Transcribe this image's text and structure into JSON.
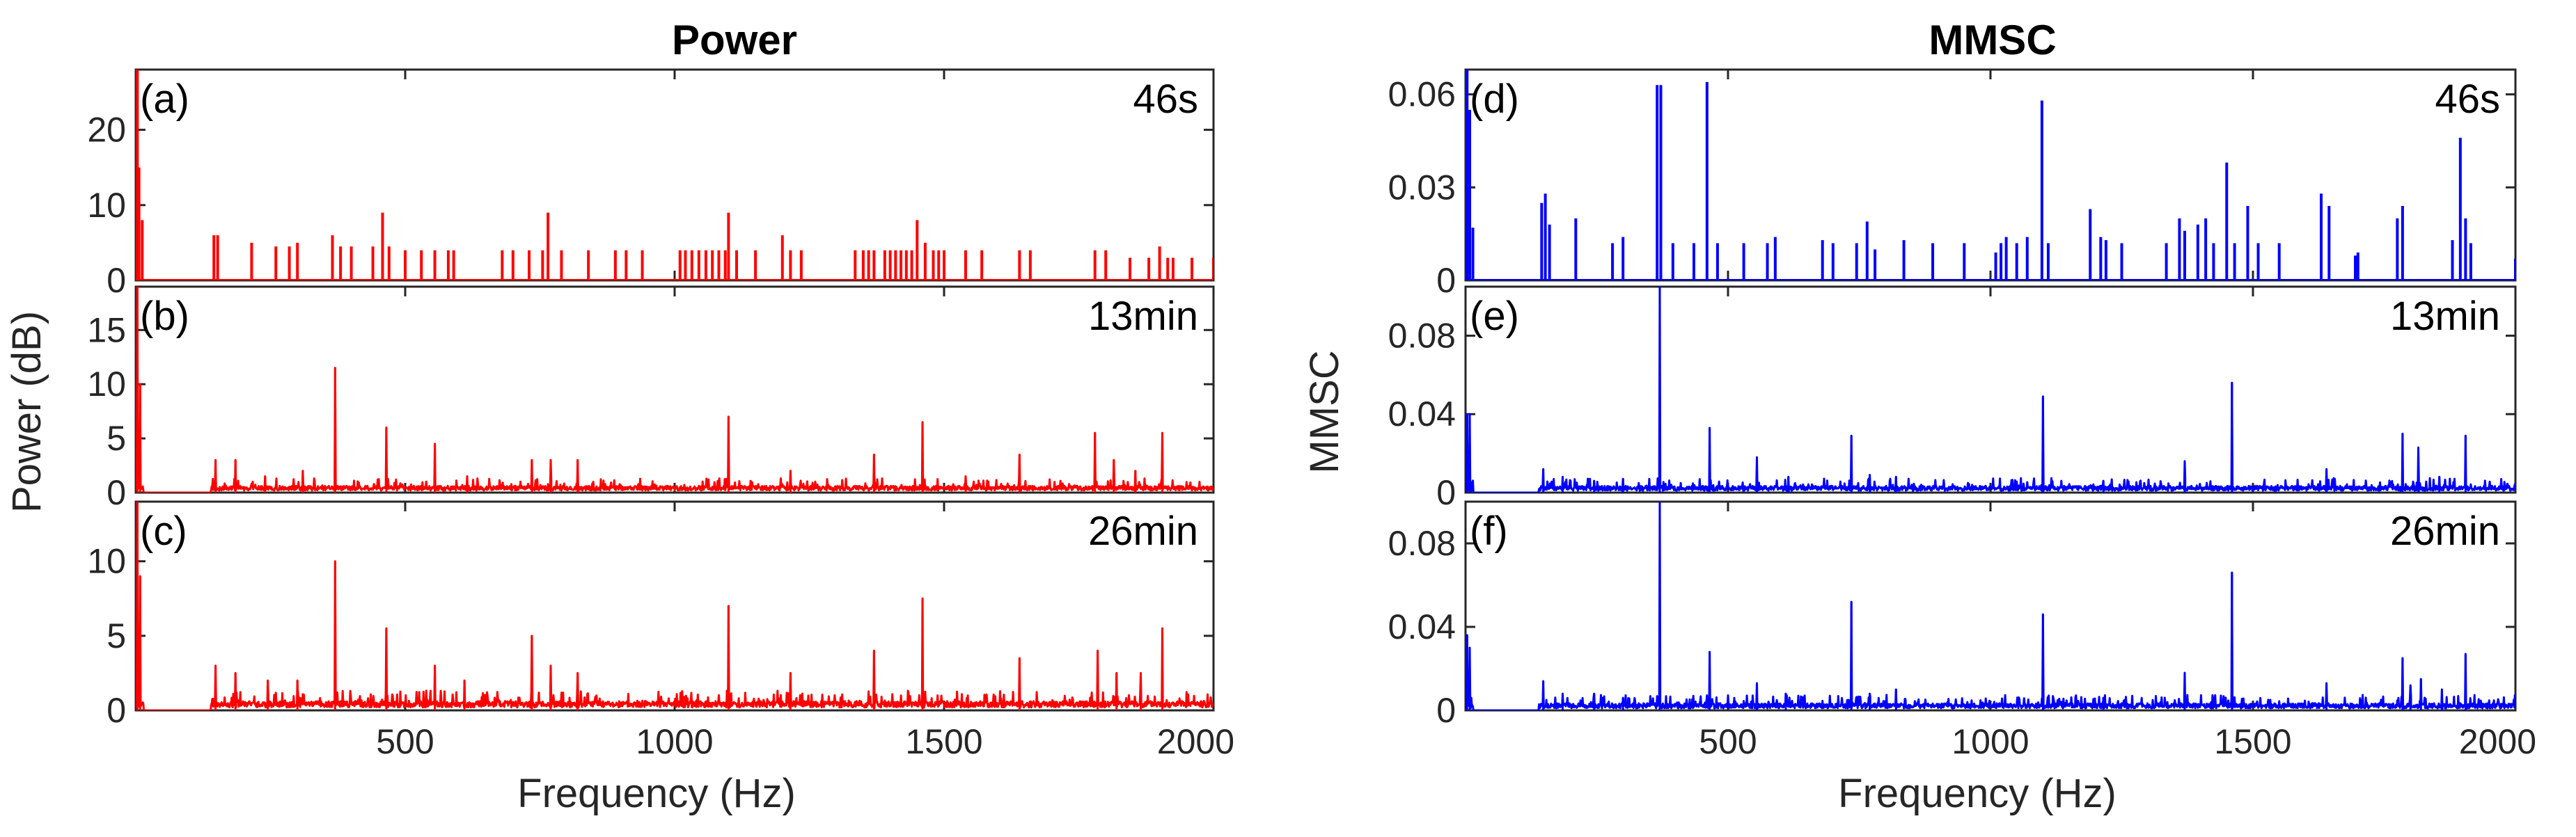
{
  "figure": {
    "col_titles": [
      "Power",
      "MMSC"
    ],
    "left_ylabel": "Power (dB)",
    "right_ylabel": "MMSC",
    "xlabel": "Frequency (Hz)"
  },
  "chart_data": [
    {
      "type": "line",
      "id": "a",
      "panel_label": "(a)",
      "time_label": "46s",
      "column": "Power",
      "color": "#ff0000",
      "style": "stem",
      "xlim": [
        0,
        2000
      ],
      "ylim": [
        0,
        28
      ],
      "xticks": [
        500,
        1000,
        1500,
        2000
      ],
      "xticklabels": [
        "500",
        "1000",
        "1500",
        "2000"
      ],
      "show_xticklabels": false,
      "yticks": [
        0,
        10,
        20
      ],
      "yticklabels": [
        "0",
        "10",
        "20"
      ],
      "noise": 0,
      "base": 0,
      "peaks": [
        [
          3,
          28
        ],
        [
          6,
          15
        ],
        [
          12,
          8
        ],
        [
          145,
          6
        ],
        [
          152,
          6
        ],
        [
          215,
          5
        ],
        [
          260,
          4.5
        ],
        [
          285,
          4.5
        ],
        [
          300,
          5
        ],
        [
          365,
          6
        ],
        [
          380,
          4.5
        ],
        [
          400,
          4.5
        ],
        [
          440,
          4.5
        ],
        [
          458,
          9
        ],
        [
          470,
          4.5
        ],
        [
          500,
          4
        ],
        [
          530,
          4
        ],
        [
          555,
          4
        ],
        [
          580,
          4
        ],
        [
          590,
          4
        ],
        [
          680,
          4
        ],
        [
          700,
          4
        ],
        [
          730,
          4
        ],
        [
          755,
          4
        ],
        [
          765,
          9
        ],
        [
          790,
          4
        ],
        [
          840,
          4
        ],
        [
          890,
          4
        ],
        [
          910,
          4
        ],
        [
          940,
          4
        ],
        [
          1010,
          4
        ],
        [
          1020,
          4
        ],
        [
          1032,
          4
        ],
        [
          1045,
          4
        ],
        [
          1058,
          4
        ],
        [
          1070,
          4
        ],
        [
          1082,
          4
        ],
        [
          1094,
          4
        ],
        [
          1100,
          9
        ],
        [
          1115,
          4
        ],
        [
          1150,
          4
        ],
        [
          1200,
          6
        ],
        [
          1215,
          4
        ],
        [
          1235,
          4
        ],
        [
          1335,
          4
        ],
        [
          1350,
          4
        ],
        [
          1360,
          4
        ],
        [
          1370,
          4
        ],
        [
          1390,
          4
        ],
        [
          1400,
          4
        ],
        [
          1410,
          4
        ],
        [
          1420,
          4
        ],
        [
          1430,
          4
        ],
        [
          1440,
          4
        ],
        [
          1450,
          8
        ],
        [
          1465,
          5
        ],
        [
          1480,
          4
        ],
        [
          1490,
          4
        ],
        [
          1500,
          4
        ],
        [
          1540,
          4
        ],
        [
          1570,
          4
        ],
        [
          1640,
          4
        ],
        [
          1660,
          4
        ],
        [
          1780,
          4
        ],
        [
          1800,
          4
        ],
        [
          1845,
          3
        ],
        [
          1880,
          3
        ],
        [
          1900,
          4.5
        ],
        [
          1915,
          3
        ],
        [
          1925,
          3
        ],
        [
          1960,
          3
        ],
        [
          2000,
          3
        ]
      ]
    },
    {
      "type": "line",
      "id": "b",
      "panel_label": "(b)",
      "time_label": "13min",
      "column": "Power",
      "color": "#ff0000",
      "style": "spectrum",
      "xlim": [
        0,
        2000
      ],
      "ylim": [
        0,
        19
      ],
      "xticks": [
        500,
        1000,
        1500,
        2000
      ],
      "xticklabels": [
        "500",
        "1000",
        "1500",
        "2000"
      ],
      "show_xticklabels": false,
      "yticks": [
        0,
        5,
        10,
        15
      ],
      "yticklabels": [
        "0",
        "5",
        "10",
        "15"
      ],
      "noise": 0.7,
      "base": 0.2,
      "peaks": [
        [
          3,
          19
        ],
        [
          8,
          10
        ],
        [
          148,
          3
        ],
        [
          185,
          3
        ],
        [
          240,
          1.5
        ],
        [
          310,
          2
        ],
        [
          370,
          11.5
        ],
        [
          465,
          6
        ],
        [
          555,
          4.5
        ],
        [
          615,
          1.5
        ],
        [
          735,
          3
        ],
        [
          770,
          3
        ],
        [
          820,
          3
        ],
        [
          1100,
          7
        ],
        [
          1215,
          2
        ],
        [
          1370,
          3.5
        ],
        [
          1460,
          6.5
        ],
        [
          1540,
          1.5
        ],
        [
          1640,
          3.5
        ],
        [
          1780,
          5.5
        ],
        [
          1815,
          3
        ],
        [
          1855,
          2
        ],
        [
          1905,
          5.5
        ]
      ]
    },
    {
      "type": "line",
      "id": "c",
      "panel_label": "(c)",
      "time_label": "26min",
      "column": "Power",
      "color": "#ff0000",
      "style": "spectrum",
      "xlim": [
        0,
        2000
      ],
      "ylim": [
        0,
        14
      ],
      "xticks": [
        500,
        1000,
        1500,
        2000
      ],
      "xticklabels": [
        "500",
        "1000",
        "1500",
        "2000"
      ],
      "show_xticklabels": true,
      "yticks": [
        0,
        5,
        10
      ],
      "yticklabels": [
        "0",
        "5",
        "10"
      ],
      "noise": 0.7,
      "base": 0.2,
      "peaks": [
        [
          3,
          14
        ],
        [
          8,
          9
        ],
        [
          148,
          3
        ],
        [
          185,
          2.5
        ],
        [
          245,
          2
        ],
        [
          300,
          2
        ],
        [
          370,
          10
        ],
        [
          465,
          5.5
        ],
        [
          555,
          3
        ],
        [
          610,
          2
        ],
        [
          735,
          5
        ],
        [
          770,
          3
        ],
        [
          820,
          2.5
        ],
        [
          1100,
          7
        ],
        [
          1215,
          2.5
        ],
        [
          1370,
          4
        ],
        [
          1460,
          7.5
        ],
        [
          1640,
          3.5
        ],
        [
          1785,
          4
        ],
        [
          1820,
          2.5
        ],
        [
          1865,
          2.5
        ],
        [
          1905,
          5.5
        ]
      ]
    },
    {
      "type": "line",
      "id": "d",
      "panel_label": "(d)",
      "time_label": "46s",
      "column": "MMSC",
      "color": "#0000ff",
      "style": "stem",
      "xlim": [
        0,
        2000
      ],
      "ylim": [
        0,
        0.068
      ],
      "xticks": [
        500,
        1000,
        1500,
        2000
      ],
      "xticklabels": [
        "500",
        "1000",
        "1500",
        "2000"
      ],
      "show_xticklabels": false,
      "yticks": [
        0,
        0.03,
        0.06
      ],
      "yticklabels": [
        "0",
        "0.03",
        "0.06"
      ],
      "noise": 0,
      "base": 0,
      "peaks": [
        [
          3,
          0.068
        ],
        [
          8,
          0.055
        ],
        [
          14,
          0.017
        ],
        [
          145,
          0.025
        ],
        [
          152,
          0.028
        ],
        [
          160,
          0.018
        ],
        [
          210,
          0.02
        ],
        [
          280,
          0.012
        ],
        [
          300,
          0.014
        ],
        [
          365,
          0.063
        ],
        [
          372,
          0.063
        ],
        [
          395,
          0.012
        ],
        [
          435,
          0.012
        ],
        [
          460,
          0.064
        ],
        [
          480,
          0.012
        ],
        [
          530,
          0.012
        ],
        [
          575,
          0.012
        ],
        [
          590,
          0.014
        ],
        [
          680,
          0.013
        ],
        [
          700,
          0.012
        ],
        [
          745,
          0.012
        ],
        [
          765,
          0.019
        ],
        [
          780,
          0.01
        ],
        [
          835,
          0.013
        ],
        [
          890,
          0.012
        ],
        [
          950,
          0.012
        ],
        [
          1010,
          0.009
        ],
        [
          1020,
          0.012
        ],
        [
          1030,
          0.014
        ],
        [
          1050,
          0.012
        ],
        [
          1070,
          0.014
        ],
        [
          1098,
          0.058
        ],
        [
          1110,
          0.012
        ],
        [
          1190,
          0.023
        ],
        [
          1210,
          0.014
        ],
        [
          1220,
          0.013
        ],
        [
          1250,
          0.012
        ],
        [
          1335,
          0.012
        ],
        [
          1360,
          0.02
        ],
        [
          1370,
          0.016
        ],
        [
          1395,
          0.018
        ],
        [
          1410,
          0.02
        ],
        [
          1425,
          0.012
        ],
        [
          1450,
          0.038
        ],
        [
          1465,
          0.012
        ],
        [
          1490,
          0.024
        ],
        [
          1510,
          0.012
        ],
        [
          1550,
          0.012
        ],
        [
          1630,
          0.028
        ],
        [
          1645,
          0.024
        ],
        [
          1695,
          0.008
        ],
        [
          1700,
          0.009
        ],
        [
          1775,
          0.02
        ],
        [
          1785,
          0.024
        ],
        [
          1880,
          0.013
        ],
        [
          1895,
          0.046
        ],
        [
          1905,
          0.02
        ],
        [
          1915,
          0.012
        ],
        [
          2000,
          0.007
        ]
      ]
    },
    {
      "type": "line",
      "id": "e",
      "panel_label": "(e)",
      "time_label": "13min",
      "column": "MMSC",
      "color": "#0000ff",
      "style": "spectrum",
      "xlim": [
        0,
        2000
      ],
      "ylim": [
        0,
        0.105
      ],
      "xticks": [
        500,
        1000,
        1500,
        2000
      ],
      "xticklabels": [
        "500",
        "1000",
        "1500",
        "2000"
      ],
      "show_xticklabels": false,
      "yticks": [
        0,
        0.04,
        0.08
      ],
      "yticklabels": [
        "0",
        "0.04",
        "0.08"
      ],
      "noise": 0.004,
      "base": 0.001,
      "peaks": [
        [
          3,
          0.04
        ],
        [
          8,
          0.04
        ],
        [
          148,
          0.012
        ],
        [
          185,
          0.008
        ],
        [
          245,
          0.006
        ],
        [
          300,
          0.007
        ],
        [
          370,
          0.105
        ],
        [
          465,
          0.033
        ],
        [
          555,
          0.018
        ],
        [
          615,
          0.008
        ],
        [
          735,
          0.029
        ],
        [
          770,
          0.009
        ],
        [
          820,
          0.008
        ],
        [
          1100,
          0.049
        ],
        [
          1215,
          0.006
        ],
        [
          1370,
          0.016
        ],
        [
          1460,
          0.056
        ],
        [
          1640,
          0.012
        ],
        [
          1785,
          0.03
        ],
        [
          1815,
          0.023
        ],
        [
          1855,
          0.008
        ],
        [
          1905,
          0.029
        ]
      ]
    },
    {
      "type": "line",
      "id": "f",
      "panel_label": "(f)",
      "time_label": "26min",
      "column": "MMSC",
      "color": "#0000ff",
      "style": "spectrum",
      "xlim": [
        0,
        2000
      ],
      "ylim": [
        0,
        0.1
      ],
      "xticks": [
        500,
        1000,
        1500,
        2000
      ],
      "xticklabels": [
        "500",
        "1000",
        "1500",
        "2000"
      ],
      "show_xticklabels": true,
      "yticks": [
        0,
        0.04,
        0.08
      ],
      "yticklabels": [
        "0",
        "0.04",
        "0.08"
      ],
      "noise": 0.004,
      "base": 0.001,
      "peaks": [
        [
          3,
          0.036
        ],
        [
          8,
          0.03
        ],
        [
          148,
          0.014
        ],
        [
          185,
          0.008
        ],
        [
          245,
          0.008
        ],
        [
          300,
          0.006
        ],
        [
          370,
          0.1
        ],
        [
          465,
          0.028
        ],
        [
          555,
          0.013
        ],
        [
          610,
          0.008
        ],
        [
          735,
          0.052
        ],
        [
          770,
          0.008
        ],
        [
          820,
          0.01
        ],
        [
          1100,
          0.046
        ],
        [
          1215,
          0.006
        ],
        [
          1370,
          0.018
        ],
        [
          1460,
          0.066
        ],
        [
          1640,
          0.013
        ],
        [
          1785,
          0.025
        ],
        [
          1800,
          0.012
        ],
        [
          1820,
          0.015
        ],
        [
          1860,
          0.01
        ],
        [
          1905,
          0.027
        ]
      ]
    }
  ]
}
